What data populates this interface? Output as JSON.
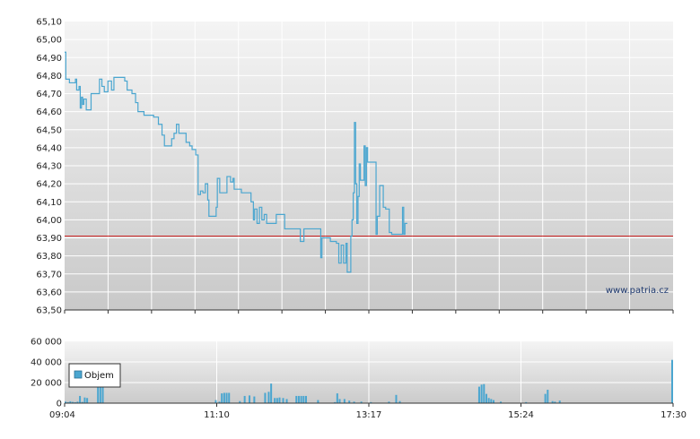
{
  "chart_data": [
    {
      "type": "line",
      "title": "",
      "xlabel": "",
      "ylabel": "",
      "ylim": [
        63.5,
        65.1
      ],
      "grid": true,
      "y_ticks": [
        "65,10",
        "65,00",
        "64,90",
        "64,80",
        "64,70",
        "64,60",
        "64,50",
        "64,40",
        "64,30",
        "64,20",
        "64,10",
        "64,00",
        "63,90",
        "63,80",
        "63,70",
        "63,60",
        "63,50"
      ],
      "reference_line": {
        "value": 63.91,
        "color": "#cc2222"
      },
      "line_color": "#4aa6d0",
      "watermark": "www.patria.cz",
      "series": [
        {
          "points": [
            [
              "09:04",
              64.93
            ],
            [
              "09:05",
              64.78
            ],
            [
              "09:07",
              64.78
            ],
            [
              "09:08",
              64.76
            ],
            [
              "09:13",
              64.78
            ],
            [
              "09:14",
              64.72
            ],
            [
              "09:16",
              64.74
            ],
            [
              "09:17",
              64.62
            ],
            [
              "09:18",
              64.68
            ],
            [
              "09:19",
              64.64
            ],
            [
              "09:20",
              64.67
            ],
            [
              "09:22",
              64.61
            ],
            [
              "09:26",
              64.7
            ],
            [
              "09:33",
              64.78
            ],
            [
              "09:35",
              64.74
            ],
            [
              "09:37",
              64.71
            ],
            [
              "09:40",
              64.77
            ],
            [
              "09:43",
              64.72
            ],
            [
              "09:45",
              64.79
            ],
            [
              "09:54",
              64.77
            ],
            [
              "09:56",
              64.72
            ],
            [
              "10:00",
              64.7
            ],
            [
              "10:03",
              64.65
            ],
            [
              "10:05",
              64.6
            ],
            [
              "10:10",
              64.58
            ],
            [
              "10:18",
              64.57
            ],
            [
              "10:22",
              64.53
            ],
            [
              "10:25",
              64.47
            ],
            [
              "10:27",
              64.41
            ],
            [
              "10:33",
              64.45
            ],
            [
              "10:35",
              64.48
            ],
            [
              "10:37",
              64.53
            ],
            [
              "10:39",
              64.48
            ],
            [
              "10:45",
              64.43
            ],
            [
              "10:48",
              64.41
            ],
            [
              "10:50",
              64.39
            ],
            [
              "10:53",
              64.36
            ],
            [
              "10:55",
              64.14
            ],
            [
              "10:57",
              64.16
            ],
            [
              "10:59",
              64.15
            ],
            [
              "11:01",
              64.2
            ],
            [
              "11:03",
              64.11
            ],
            [
              "11:04",
              64.02
            ],
            [
              "11:10",
              64.07
            ],
            [
              "11:11",
              64.23
            ],
            [
              "11:13",
              64.15
            ],
            [
              "11:19",
              64.24
            ],
            [
              "11:22",
              64.21
            ],
            [
              "11:24",
              64.23
            ],
            [
              "11:25",
              64.17
            ],
            [
              "11:31",
              64.15
            ],
            [
              "11:35",
              64.15
            ],
            [
              "11:39",
              64.1
            ],
            [
              "11:41",
              64.0
            ],
            [
              "11:42",
              64.06
            ],
            [
              "11:44",
              63.98
            ],
            [
              "11:46",
              64.07
            ],
            [
              "11:48",
              64.0
            ],
            [
              "11:50",
              64.03
            ],
            [
              "11:52",
              63.98
            ],
            [
              "12:00",
              64.03
            ],
            [
              "12:07",
              63.95
            ],
            [
              "12:20",
              63.88
            ],
            [
              "12:23",
              63.95
            ],
            [
              "12:35",
              63.95
            ],
            [
              "12:37",
              63.79
            ],
            [
              "12:38",
              63.9
            ],
            [
              "12:45",
              63.88
            ],
            [
              "12:50",
              63.87
            ],
            [
              "12:52",
              63.76
            ],
            [
              "12:54",
              63.86
            ],
            [
              "12:56",
              63.76
            ],
            [
              "12:58",
              63.87
            ],
            [
              "12:59",
              63.71
            ],
            [
              "13:02",
              63.91
            ],
            [
              "13:03",
              64.0
            ],
            [
              "13:04",
              64.15
            ],
            [
              "13:05",
              64.54
            ],
            [
              "13:06",
              64.2
            ],
            [
              "13:07",
              63.98
            ],
            [
              "13:08",
              64.13
            ],
            [
              "13:09",
              64.31
            ],
            [
              "13:10",
              64.22
            ],
            [
              "13:13",
              64.41
            ],
            [
              "13:14",
              64.19
            ],
            [
              "13:15",
              64.4
            ],
            [
              "13:16",
              64.32
            ],
            [
              "13:23",
              63.92
            ],
            [
              "13:24",
              64.02
            ],
            [
              "13:26",
              64.19
            ],
            [
              "13:29",
              64.07
            ],
            [
              "13:31",
              64.06
            ],
            [
              "13:34",
              63.93
            ],
            [
              "13:36",
              63.92
            ],
            [
              "13:43",
              63.92
            ],
            [
              "13:45",
              64.07
            ],
            [
              "13:46",
              63.92
            ],
            [
              "13:47",
              63.98
            ],
            [
              "13:49",
              63.98
            ]
          ]
        }
      ]
    },
    {
      "type": "bar",
      "title": "",
      "xlabel": "",
      "ylabel": "",
      "ylim": [
        0,
        60000
      ],
      "grid": true,
      "y_ticks": [
        "60 000",
        "40 000",
        "20 000",
        "0"
      ],
      "x_ticks": [
        "09:04",
        "11:10",
        "13:17",
        "15:24",
        "17:30"
      ],
      "legend": {
        "entries": [
          "Objem"
        ],
        "placement": "middle-left"
      },
      "bar_color": "#4aa6d0",
      "series": [
        {
          "name": "Objem",
          "points": [
            [
              "09:04",
              1500
            ],
            [
              "09:06",
              1000
            ],
            [
              "09:08",
              1800
            ],
            [
              "09:10",
              1200
            ],
            [
              "09:12",
              900
            ],
            [
              "09:14",
              1500
            ],
            [
              "09:16",
              7000
            ],
            [
              "09:18",
              1200
            ],
            [
              "09:20",
              5500
            ],
            [
              "09:22",
              5000
            ],
            [
              "09:31",
              24000
            ],
            [
              "09:33",
              25000
            ],
            [
              "09:35",
              25000
            ],
            [
              "11:09",
              3000
            ],
            [
              "11:12",
              1500
            ],
            [
              "11:14",
              9500
            ],
            [
              "11:16",
              10000
            ],
            [
              "11:18",
              10000
            ],
            [
              "11:20",
              10000
            ],
            [
              "11:29",
              2000
            ],
            [
              "11:33",
              7000
            ],
            [
              "11:37",
              7500
            ],
            [
              "11:41",
              6500
            ],
            [
              "11:50",
              10000
            ],
            [
              "11:53",
              11000
            ],
            [
              "11:55",
              19000
            ],
            [
              "11:58",
              5000
            ],
            [
              "12:00",
              5000
            ],
            [
              "12:02",
              5500
            ],
            [
              "12:05",
              5000
            ],
            [
              "12:08",
              4000
            ],
            [
              "12:16",
              7000
            ],
            [
              "12:18",
              7000
            ],
            [
              "12:20",
              7000
            ],
            [
              "12:22",
              7000
            ],
            [
              "12:24",
              7000
            ],
            [
              "12:34",
              3000
            ],
            [
              "12:48",
              1000
            ],
            [
              "12:50",
              9500
            ],
            [
              "12:52",
              4000
            ],
            [
              "12:56",
              4000
            ],
            [
              "13:00",
              2500
            ],
            [
              "13:04",
              1500
            ],
            [
              "13:10",
              1500
            ],
            [
              "13:18",
              1000
            ],
            [
              "13:33",
              1500
            ],
            [
              "13:39",
              8000
            ],
            [
              "13:42",
              2000
            ],
            [
              "14:48",
              16000
            ],
            [
              "14:50",
              18000
            ],
            [
              "14:52",
              18500
            ],
            [
              "14:54",
              9000
            ],
            [
              "14:56",
              5000
            ],
            [
              "14:58",
              4000
            ],
            [
              "15:00",
              3000
            ],
            [
              "15:06",
              1500
            ],
            [
              "15:27",
              1000
            ],
            [
              "15:43",
              9000
            ],
            [
              "15:45",
              13000
            ],
            [
              "15:49",
              2000
            ],
            [
              "15:51",
              1500
            ],
            [
              "15:55",
              2500
            ],
            [
              "17:30",
              42000
            ]
          ]
        }
      ]
    }
  ]
}
